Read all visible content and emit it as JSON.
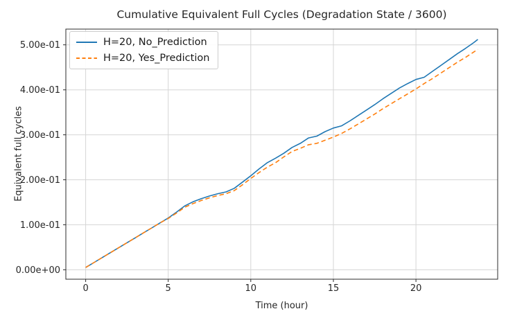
{
  "chart_data": {
    "type": "line",
    "title": "Cumulative Equivalent Full Cycles (Degradation State / 3600)",
    "xlabel": "Time (hour)",
    "ylabel": "Equivalent full cycles",
    "xlim": [
      -1.2,
      24.95
    ],
    "ylim": [
      -0.021,
      0.535
    ],
    "grid": true,
    "grid_color": "#d5d5d5",
    "spine_color": "#2b2b2b",
    "tick_label_color": "#262626",
    "legend_position": "upper-left",
    "xticks": {
      "values": [
        0,
        5,
        10,
        15,
        20
      ],
      "labels": [
        "0",
        "5",
        "10",
        "15",
        "20"
      ]
    },
    "yticks": {
      "values": [
        0,
        0.1,
        0.2,
        0.3,
        0.4,
        0.5
      ],
      "labels": [
        "0.00e+00",
        "1.00e-01",
        "2.00e-01",
        "3.00e-01",
        "4.00e-01",
        "5.00e-01"
      ]
    },
    "x": [
      0,
      0.5,
      1,
      1.5,
      2,
      2.5,
      3,
      3.5,
      4,
      4.5,
      5,
      5.5,
      6,
      6.5,
      7,
      7.5,
      8,
      8.5,
      9,
      9.5,
      10,
      10.5,
      11,
      11.5,
      12,
      12.5,
      13,
      13.5,
      14,
      14.5,
      15,
      15.5,
      16,
      16.5,
      17,
      17.5,
      18,
      18.5,
      19,
      19.5,
      20,
      20.5,
      21,
      21.5,
      22,
      22.5,
      23,
      23.5,
      23.75
    ],
    "series": [
      {
        "name": "H=20, No_Prediction",
        "color": "#1f77b4",
        "line_style": "solid",
        "values": [
          0.005,
          0.016,
          0.027,
          0.038,
          0.049,
          0.06,
          0.071,
          0.082,
          0.093,
          0.104,
          0.115,
          0.128,
          0.142,
          0.151,
          0.158,
          0.164,
          0.169,
          0.173,
          0.181,
          0.195,
          0.209,
          0.224,
          0.238,
          0.248,
          0.259,
          0.272,
          0.281,
          0.293,
          0.297,
          0.307,
          0.315,
          0.32,
          0.331,
          0.343,
          0.355,
          0.367,
          0.38,
          0.392,
          0.404,
          0.414,
          0.423,
          0.428,
          0.441,
          0.454,
          0.467,
          0.48,
          0.492,
          0.505,
          0.512
        ]
      },
      {
        "name": "H=20, Yes_Prediction",
        "color": "#ff7f0e",
        "line_style": "dashed",
        "values": [
          0.005,
          0.016,
          0.027,
          0.038,
          0.049,
          0.06,
          0.071,
          0.082,
          0.093,
          0.104,
          0.114,
          0.126,
          0.139,
          0.147,
          0.154,
          0.16,
          0.165,
          0.169,
          0.176,
          0.189,
          0.203,
          0.216,
          0.228,
          0.238,
          0.251,
          0.263,
          0.27,
          0.278,
          0.281,
          0.288,
          0.295,
          0.303,
          0.313,
          0.324,
          0.335,
          0.346,
          0.358,
          0.369,
          0.38,
          0.391,
          0.402,
          0.414,
          0.425,
          0.437,
          0.449,
          0.461,
          0.472,
          0.484,
          0.49
        ]
      }
    ]
  }
}
